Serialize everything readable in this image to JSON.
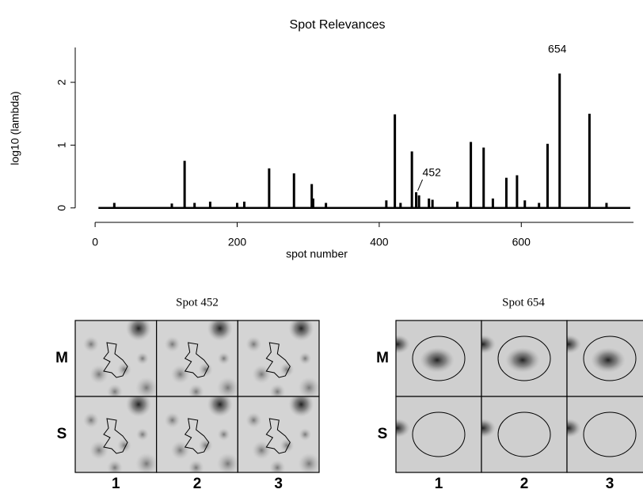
{
  "chart_data": {
    "type": "spike",
    "title": "Spot Relevances",
    "xlabel": "spot number",
    "ylabel": "log10 (lambda)",
    "xlim": [
      -28,
      758
    ],
    "ylim": [
      -0.23,
      2.58
    ],
    "xticks": [
      0,
      200,
      400,
      600
    ],
    "yticks": [
      0,
      1,
      2
    ],
    "color": "#000000",
    "x": [
      27,
      108,
      126,
      140,
      162,
      200,
      210,
      245,
      280,
      305,
      307,
      325,
      410,
      422,
      430,
      446,
      452,
      456,
      470,
      475,
      510,
      529,
      547,
      560,
      579,
      594,
      605,
      625,
      637,
      654,
      696,
      720
    ],
    "values": [
      0.08,
      0.07,
      0.75,
      0.08,
      0.1,
      0.08,
      0.1,
      0.63,
      0.55,
      0.38,
      0.15,
      0.08,
      0.12,
      1.49,
      0.08,
      0.9,
      0.25,
      0.2,
      0.15,
      0.13,
      0.1,
      1.05,
      0.96,
      0.15,
      0.48,
      0.52,
      0.12,
      0.08,
      1.02,
      2.14,
      1.5,
      0.08
    ],
    "annotations": [
      {
        "text": "452",
        "x": 452,
        "y": 0.25
      },
      {
        "text": "654",
        "x": 654,
        "y": 2.14
      }
    ]
  },
  "panels": [
    {
      "title": "Spot 452",
      "rows": [
        "M",
        "S"
      ],
      "columns": [
        "1",
        "2",
        "3"
      ]
    },
    {
      "title": "Spot 654",
      "rows": [
        "M",
        "S"
      ],
      "columns": [
        "1",
        "2",
        "3"
      ]
    }
  ]
}
